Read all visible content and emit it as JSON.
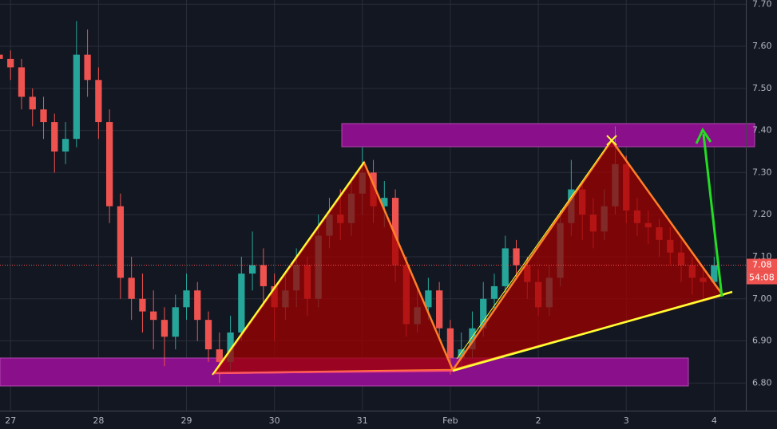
{
  "chart_data": {
    "type": "candlestick",
    "x": [
      -0.125,
      0,
      0.125,
      0.25,
      0.375,
      0.5,
      0.625,
      0.75,
      0.875,
      1,
      1.125,
      1.25,
      1.375,
      1.5,
      1.625,
      1.75,
      1.875,
      2,
      2.125,
      2.25,
      2.375,
      2.5,
      2.625,
      2.75,
      2.875,
      3,
      3.125,
      3.25,
      3.375,
      3.5,
      3.625,
      3.75,
      3.875,
      4,
      4.125,
      4.25,
      4.375,
      4.5,
      4.625,
      4.75,
      4.875,
      5,
      5.125,
      5.25,
      5.375,
      5.5,
      5.625,
      5.75,
      5.875,
      6,
      6.125,
      6.25,
      6.375,
      6.5,
      6.625,
      6.75,
      6.875,
      7,
      7.125,
      7.25,
      7.375,
      7.5,
      7.625,
      7.75,
      7.875,
      8
    ],
    "open": [
      7.58,
      7.57,
      7.55,
      7.48,
      7.45,
      7.42,
      7.35,
      7.38,
      7.58,
      7.52,
      7.42,
      7.22,
      7.05,
      7.0,
      6.97,
      6.95,
      6.91,
      6.98,
      7.02,
      6.95,
      6.88,
      6.85,
      6.92,
      7.06,
      7.08,
      7.03,
      6.98,
      7.02,
      7.08,
      7.0,
      7.15,
      7.2,
      7.18,
      7.25,
      7.3,
      7.22,
      7.24,
      7.08,
      6.94,
      6.98,
      7.02,
      6.93,
      6.86,
      6.88,
      6.93,
      7.0,
      7.03,
      7.12,
      7.08,
      7.04,
      6.98,
      7.05,
      7.18,
      7.26,
      7.2,
      7.16,
      7.22,
      7.32,
      7.21,
      7.18,
      7.17,
      7.14,
      7.11,
      7.08,
      7.05,
      7.04
    ],
    "high": [
      7.6,
      7.59,
      7.57,
      7.5,
      7.48,
      7.44,
      7.42,
      7.66,
      7.64,
      7.55,
      7.45,
      7.25,
      7.1,
      7.06,
      7.02,
      6.98,
      7.01,
      7.06,
      7.04,
      6.97,
      6.92,
      6.96,
      7.1,
      7.16,
      7.12,
      7.06,
      7.06,
      7.12,
      7.1,
      7.2,
      7.24,
      7.26,
      7.28,
      7.36,
      7.33,
      7.28,
      7.26,
      7.1,
      7.03,
      7.05,
      7.04,
      6.95,
      6.92,
      6.97,
      7.04,
      7.06,
      7.15,
      7.14,
      7.1,
      7.07,
      7.08,
      7.21,
      7.33,
      7.28,
      7.24,
      7.26,
      7.41,
      7.34,
      7.24,
      7.21,
      7.19,
      7.17,
      7.14,
      7.1,
      7.07,
      7.1
    ],
    "low": [
      7.55,
      7.52,
      7.45,
      7.41,
      7.38,
      7.3,
      7.32,
      7.36,
      7.48,
      7.38,
      7.18,
      7.0,
      6.95,
      6.92,
      6.88,
      6.84,
      6.88,
      6.95,
      6.9,
      6.85,
      6.8,
      6.83,
      6.9,
      7.02,
      6.98,
      6.9,
      6.95,
      6.98,
      6.96,
      6.98,
      7.12,
      7.14,
      7.15,
      7.2,
      7.18,
      7.17,
      7.04,
      6.91,
      6.92,
      6.95,
      6.9,
      6.82,
      6.84,
      6.86,
      6.91,
      6.97,
      7.01,
      7.05,
      7.0,
      6.96,
      6.96,
      7.03,
      7.15,
      7.14,
      7.12,
      7.14,
      7.2,
      7.18,
      7.15,
      7.13,
      7.1,
      7.08,
      7.04,
      7.01,
      7.0,
      7.03
    ],
    "close": [
      7.57,
      7.55,
      7.48,
      7.45,
      7.42,
      7.35,
      7.38,
      7.58,
      7.52,
      7.42,
      7.22,
      7.05,
      7.0,
      6.97,
      6.95,
      6.91,
      6.98,
      7.02,
      6.95,
      6.88,
      6.85,
      6.92,
      7.06,
      7.08,
      7.03,
      6.98,
      7.02,
      7.08,
      7.0,
      7.15,
      7.2,
      7.18,
      7.25,
      7.3,
      7.22,
      7.24,
      7.08,
      6.94,
      6.98,
      7.02,
      6.93,
      6.86,
      6.88,
      6.93,
      7.0,
      7.03,
      7.12,
      7.08,
      7.04,
      6.98,
      7.05,
      7.18,
      7.26,
      7.2,
      7.16,
      7.22,
      7.32,
      7.21,
      7.18,
      7.17,
      7.14,
      7.11,
      7.08,
      7.05,
      7.04,
      7.08
    ],
    "up_color": "#26a69a",
    "down_color": "#ef5350",
    "xlim": [
      -0.12,
      8.36
    ],
    "ylim": [
      6.74,
      7.71
    ],
    "xticks": [
      {
        "value": 0,
        "label": "27"
      },
      {
        "value": 1,
        "label": "28"
      },
      {
        "value": 2,
        "label": "29"
      },
      {
        "value": 3,
        "label": "30"
      },
      {
        "value": 4,
        "label": "31"
      },
      {
        "value": 5,
        "label": "Feb"
      },
      {
        "value": 6,
        "label": "2"
      },
      {
        "value": 7,
        "label": "3"
      },
      {
        "value": 8,
        "label": "4"
      }
    ],
    "yticks": [
      {
        "value": 6.8,
        "label": "6.80"
      },
      {
        "value": 6.9,
        "label": "6.90"
      },
      {
        "value": 7.0,
        "label": "7.00"
      },
      {
        "value": 7.1,
        "label": "7.10"
      },
      {
        "value": 7.2,
        "label": "7.20"
      },
      {
        "value": 7.3,
        "label": "7.30"
      },
      {
        "value": 7.4,
        "label": "7.40"
      },
      {
        "value": 7.5,
        "label": "7.50"
      },
      {
        "value": 7.6,
        "label": "7.60"
      },
      {
        "value": 7.7,
        "label": "7.70"
      }
    ],
    "grid": true,
    "last_price": 7.08,
    "countdown": "54:08",
    "last_price_color": "#ef5350"
  }
}
